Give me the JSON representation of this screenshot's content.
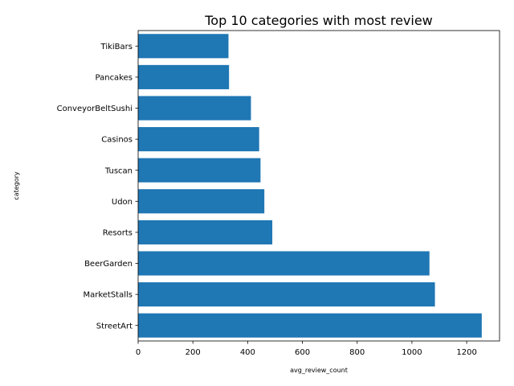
{
  "chart_data": {
    "type": "bar",
    "orientation": "horizontal",
    "title": "Top 10 categories with most review",
    "xlabel": "avg_review_count",
    "ylabel": "category",
    "categories": [
      "StreetArt",
      "MarketStalls",
      "BeerGarden",
      "Resorts",
      "Udon",
      "Tuscan",
      "Casinos",
      "ConveyorBeltSushi",
      "Pancakes",
      "TikiBars"
    ],
    "values": [
      1255,
      1084,
      1064,
      490,
      461,
      447,
      442,
      412,
      332,
      330
    ],
    "xlim": [
      0,
      1320
    ],
    "xticks": [
      0,
      200,
      400,
      600,
      800,
      1000,
      1200
    ],
    "bar_color": "#1f77b4",
    "grid": false,
    "legend": false
  }
}
